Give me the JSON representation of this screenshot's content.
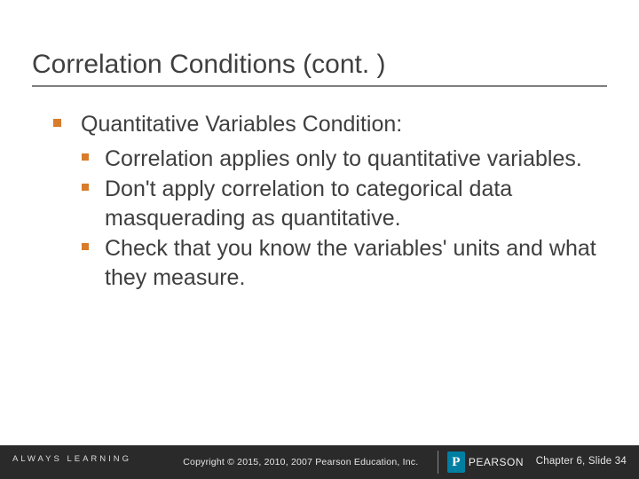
{
  "slide": {
    "title": "Correlation Conditions (cont. )",
    "title_color": "#3f3f3f",
    "underline_color": "#7f7f7f",
    "bullet_color": "#d87b2a",
    "body_text_color": "#3f3f3f",
    "body_fontsize": 25,
    "level1": "Quantitative Variables Condition:",
    "level2": [
      "Correlation applies only to quantitative variables.",
      "Don't apply correlation to categorical data masquerading as quantitative.",
      "Check that you know the variables' units and what they measure."
    ]
  },
  "footer": {
    "background": "#2a2a2a",
    "always_learning": "ALWAYS LEARNING",
    "copyright": "Copyright © 2015, 2010, 2007 Pearson Education, Inc.",
    "pearson_logo_text": "PEARSON",
    "pearson_logo_accent": "#007fa3",
    "slide_ref": "Chapter 6, Slide 34"
  }
}
